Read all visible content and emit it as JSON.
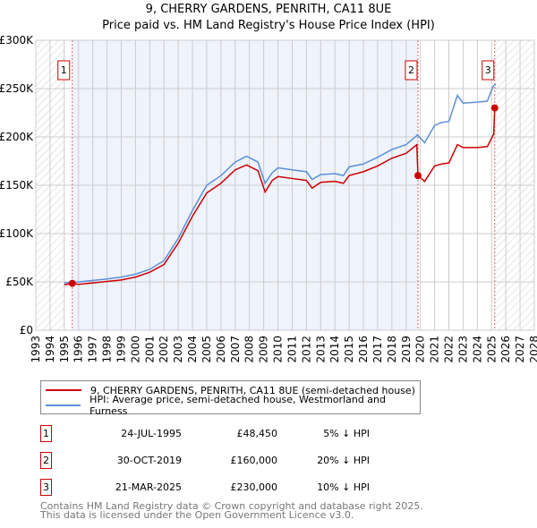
{
  "chart_data": {
    "type": "line",
    "title": "9, CHERRY GARDENS, PENRITH, CA11 8UE",
    "subtitle": "Price paid vs. HM Land Registry's House Price Index (HPI)",
    "xlim": [
      1993,
      2028
    ],
    "ylim": [
      0,
      300000
    ],
    "x_ticks": [
      "1993",
      "1994",
      "1995",
      "1996",
      "1997",
      "1998",
      "1999",
      "2000",
      "2001",
      "2002",
      "2003",
      "2004",
      "2005",
      "2006",
      "2007",
      "2008",
      "2009",
      "2010",
      "2011",
      "2012",
      "2013",
      "2014",
      "2015",
      "2016",
      "2017",
      "2018",
      "2019",
      "2020",
      "2021",
      "2022",
      "2023",
      "2024",
      "2025",
      "2026",
      "2027",
      "2028"
    ],
    "y_ticks": [
      {
        "v": 0,
        "label": "£0"
      },
      {
        "v": 50000,
        "label": "£50K"
      },
      {
        "v": 100000,
        "label": "£100K"
      },
      {
        "v": 150000,
        "label": "£150K"
      },
      {
        "v": 200000,
        "label": "£200K"
      },
      {
        "v": 250000,
        "label": "£250K"
      },
      {
        "v": 300000,
        "label": "£300K"
      }
    ],
    "grid": true,
    "series": [
      {
        "name": "9, CHERRY GARDENS, PENRITH, CA11 8UE (semi-detached house)",
        "color": "#cc0000",
        "points": [
          [
            1995.0,
            47000
          ],
          [
            1995.56,
            48450
          ],
          [
            1996,
            47500
          ],
          [
            1997,
            49000
          ],
          [
            1998,
            50500
          ],
          [
            1999,
            52000
          ],
          [
            2000,
            55000
          ],
          [
            2001,
            60000
          ],
          [
            2002,
            68000
          ],
          [
            2003,
            90000
          ],
          [
            2004,
            118000
          ],
          [
            2005,
            142000
          ],
          [
            2006,
            152000
          ],
          [
            2007,
            166000
          ],
          [
            2007.8,
            171000
          ],
          [
            2008.6,
            165000
          ],
          [
            2009.1,
            143000
          ],
          [
            2009.6,
            155000
          ],
          [
            2010,
            159000
          ],
          [
            2011,
            157000
          ],
          [
            2012,
            155000
          ],
          [
            2012.4,
            147000
          ],
          [
            2013,
            153000
          ],
          [
            2014,
            154000
          ],
          [
            2014.6,
            152000
          ],
          [
            2015,
            160000
          ],
          [
            2016,
            164000
          ],
          [
            2017,
            170000
          ],
          [
            2018,
            178000
          ],
          [
            2019,
            183000
          ],
          [
            2019.75,
            192000
          ],
          [
            2019.83,
            160000
          ],
          [
            2020.3,
            154000
          ],
          [
            2021,
            170000
          ],
          [
            2021.5,
            172000
          ],
          [
            2022,
            173000
          ],
          [
            2022.6,
            192000
          ],
          [
            2023,
            189000
          ],
          [
            2024,
            189000
          ],
          [
            2024.7,
            190000
          ],
          [
            2025.15,
            203000
          ],
          [
            2025.22,
            230000
          ]
        ]
      },
      {
        "name": "HPI: Average price, semi-detached house, Westmorland and Furness",
        "color": "#5b8fd6",
        "points": [
          [
            1995.0,
            49000
          ],
          [
            1996,
            50000
          ],
          [
            1997,
            51500
          ],
          [
            1998,
            53000
          ],
          [
            1999,
            55000
          ],
          [
            2000,
            58000
          ],
          [
            2001,
            63000
          ],
          [
            2002,
            72000
          ],
          [
            2003,
            95000
          ],
          [
            2004,
            124000
          ],
          [
            2005,
            150000
          ],
          [
            2006,
            160000
          ],
          [
            2007,
            174000
          ],
          [
            2007.8,
            180000
          ],
          [
            2008.6,
            174000
          ],
          [
            2009.1,
            152000
          ],
          [
            2009.6,
            163000
          ],
          [
            2010,
            168000
          ],
          [
            2011,
            166000
          ],
          [
            2012,
            164000
          ],
          [
            2012.4,
            156000
          ],
          [
            2013,
            161000
          ],
          [
            2014,
            162000
          ],
          [
            2014.6,
            160000
          ],
          [
            2015,
            169000
          ],
          [
            2016,
            172000
          ],
          [
            2017,
            179000
          ],
          [
            2018,
            187000
          ],
          [
            2019,
            192000
          ],
          [
            2019.8,
            202000
          ],
          [
            2020.3,
            194000
          ],
          [
            2021,
            212000
          ],
          [
            2021.5,
            215000
          ],
          [
            2022,
            216000
          ],
          [
            2022.6,
            243000
          ],
          [
            2023,
            235000
          ],
          [
            2024,
            236000
          ],
          [
            2024.7,
            237000
          ],
          [
            2025.1,
            252000
          ],
          [
            2025.3,
            255000
          ]
        ]
      }
    ],
    "sales": [
      {
        "n": "1",
        "x": 1995.56,
        "y": 48450
      },
      {
        "n": "2",
        "x": 2019.83,
        "y": 160000
      },
      {
        "n": "3",
        "x": 2025.22,
        "y": 230000
      }
    ]
  },
  "legend": {
    "red": "9, CHERRY GARDENS, PENRITH, CA11 8UE (semi-detached house)",
    "blue": "HPI: Average price, semi-detached house, Westmorland and Furness"
  },
  "table": [
    {
      "n": "1",
      "date": "24-JUL-1995",
      "price": "£48,450",
      "hpi": "5% ↓ HPI"
    },
    {
      "n": "2",
      "date": "30-OCT-2019",
      "price": "£160,000",
      "hpi": "20% ↓ HPI"
    },
    {
      "n": "3",
      "date": "21-MAR-2025",
      "price": "£230,000",
      "hpi": "10% ↓ HPI"
    }
  ],
  "footer": {
    "line1": "Contains HM Land Registry data © Crown copyright and database right 2025.",
    "line2": "This data is licensed under the Open Government Licence v3.0."
  }
}
